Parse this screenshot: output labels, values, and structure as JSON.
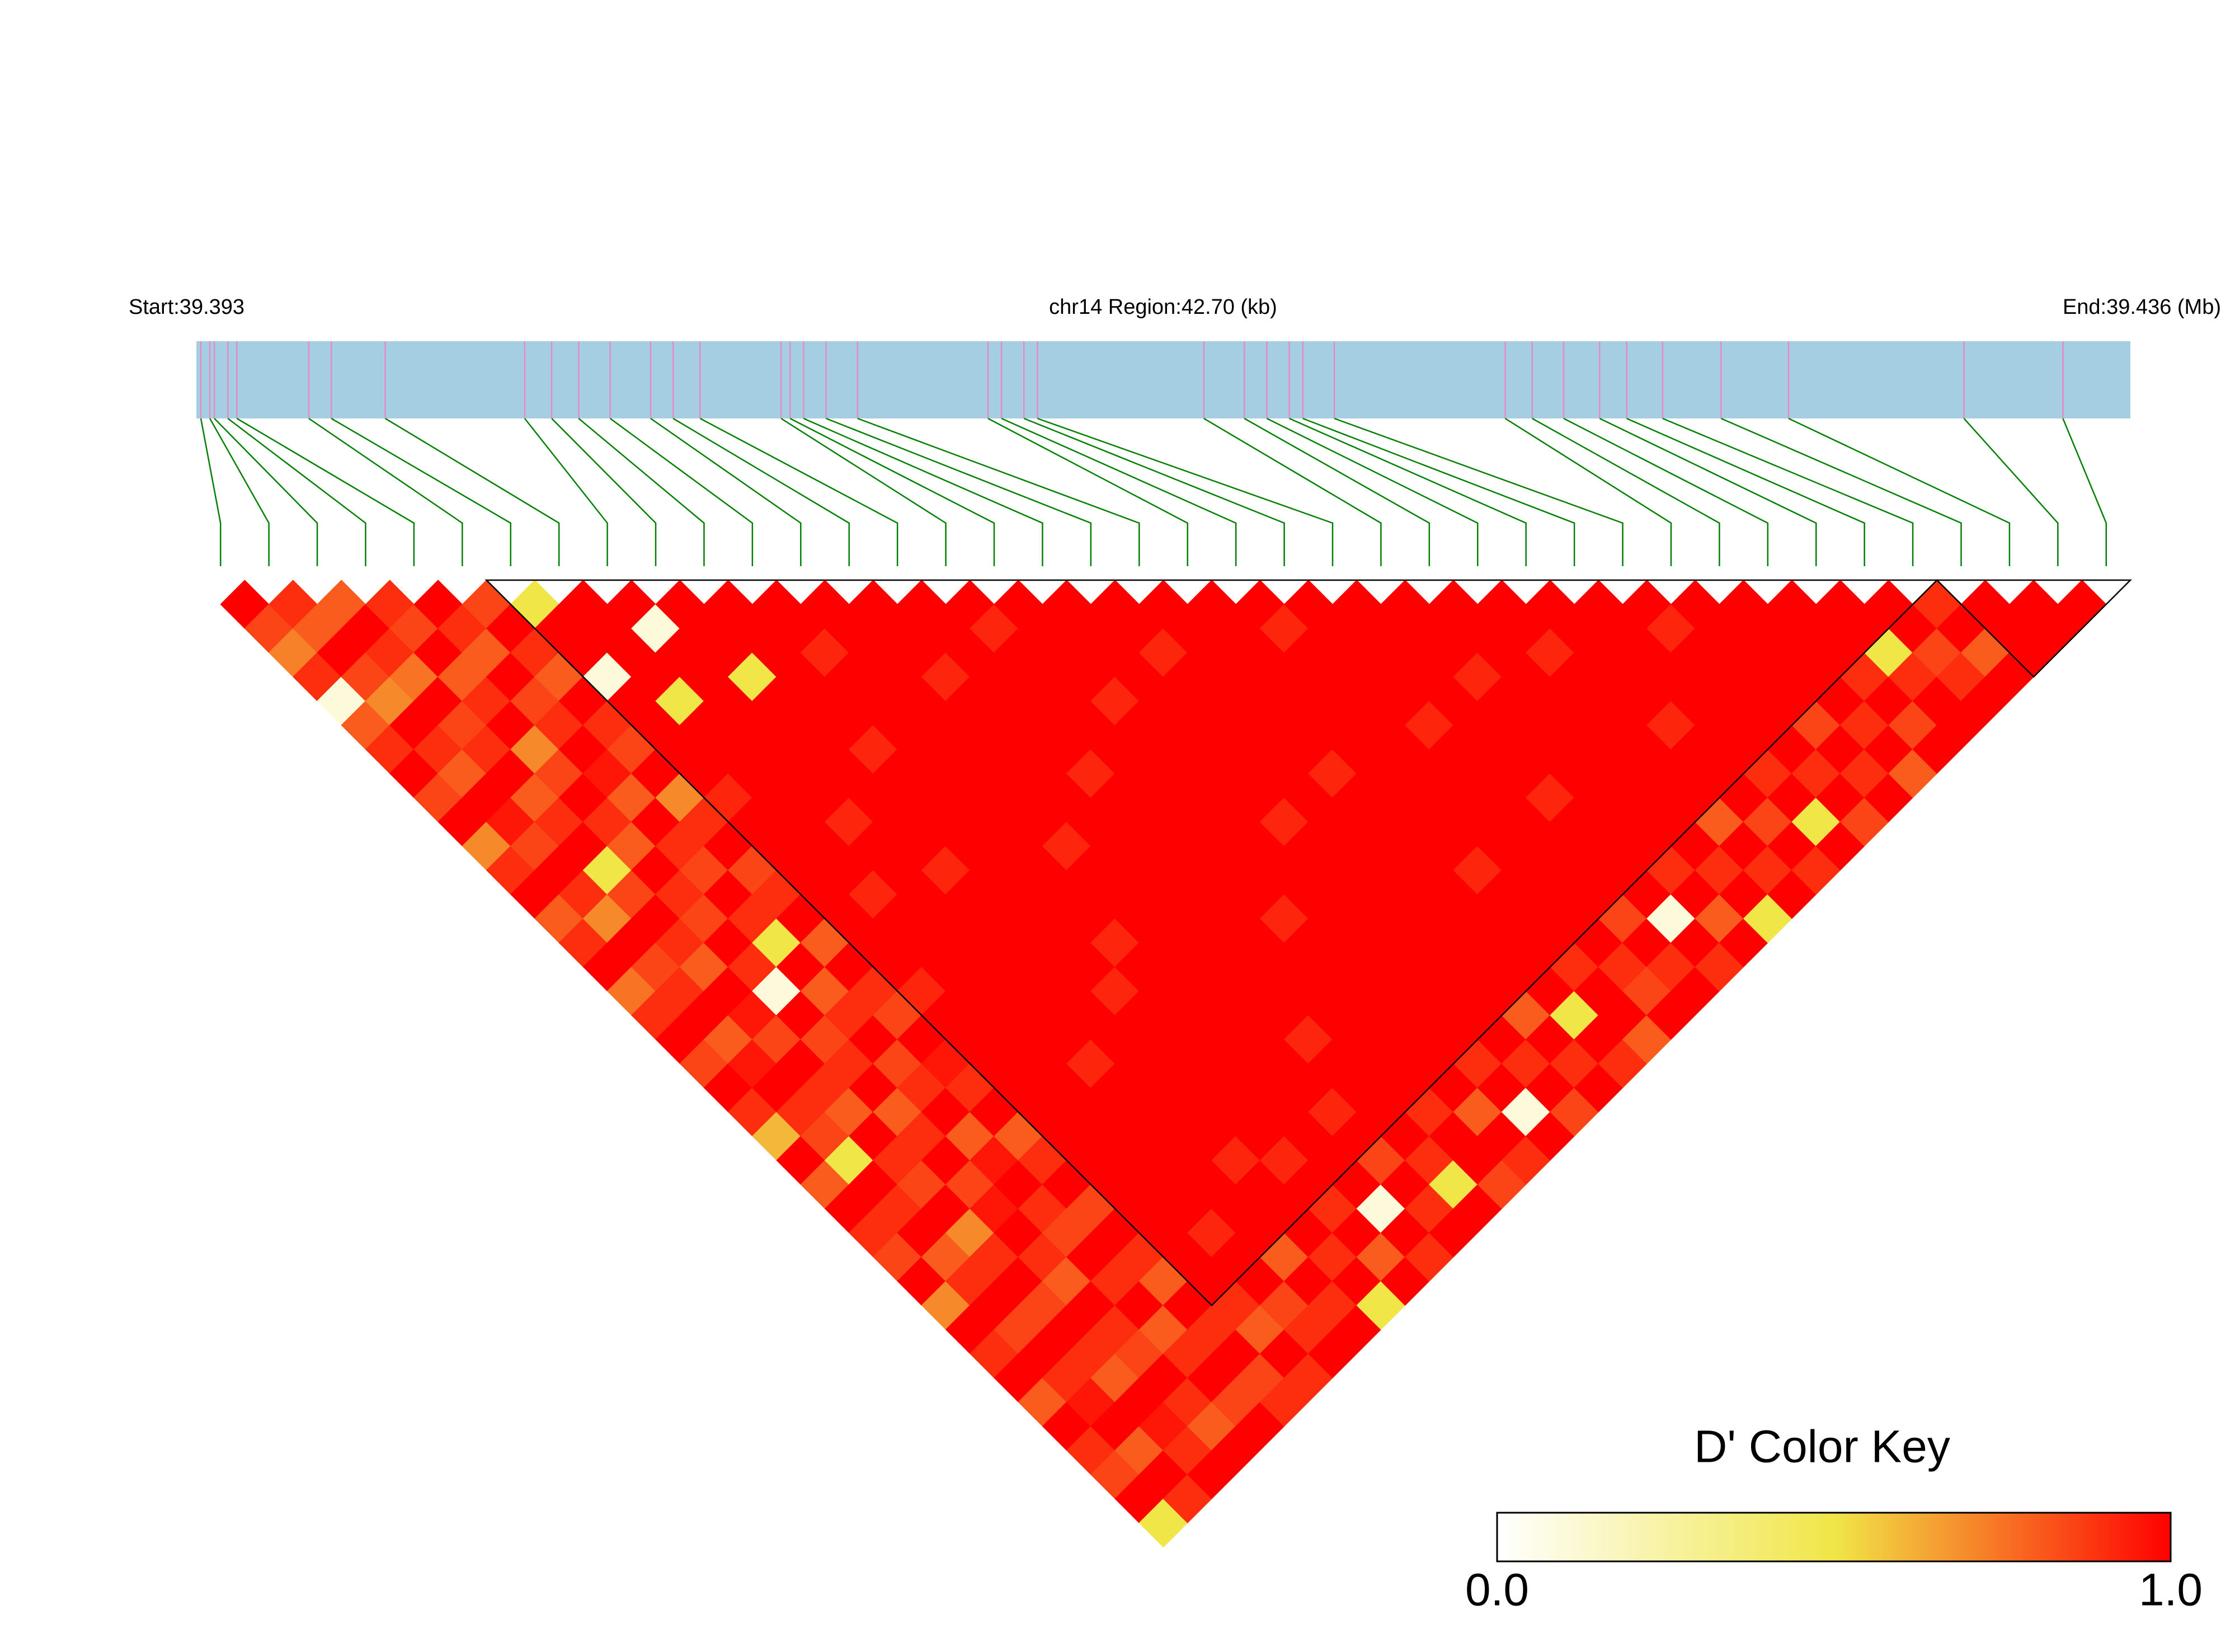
{
  "chart_data": {
    "type": "ld_heatmap",
    "start": {
      "value": 39.393,
      "label": "Start:39.393"
    },
    "title": "chr14 Region:42.70 (kb)",
    "end": {
      "value": 39.436,
      "label": "End:39.436 (Mb)"
    },
    "positions": [
      39.3931,
      39.3933,
      39.3934,
      39.3937,
      39.3939,
      39.3955,
      39.396,
      39.3972,
      39.4003,
      39.4009,
      39.4015,
      39.4022,
      39.4031,
      39.4036,
      39.4042,
      39.406,
      39.4062,
      39.4065,
      39.407,
      39.4077,
      39.4106,
      39.4109,
      39.4114,
      39.4117,
      39.4154,
      39.4163,
      39.4168,
      39.4173,
      39.4176,
      39.4183,
      39.4221,
      39.4227,
      39.4234,
      39.4242,
      39.4248,
      39.4256,
      39.4269,
      39.4284,
      39.4323,
      39.4345
    ],
    "matrix": [
      [
        1,
        0.85,
        0.72,
        0.9,
        0.1,
        0.8,
        0.9,
        1,
        0.85,
        1,
        0.7,
        0.9,
        1,
        0.8,
        0.9,
        1,
        0.75,
        0.9,
        1,
        0.85,
        1,
        0.9,
        0.6,
        1,
        0.8,
        1,
        0.9,
        0.85,
        1,
        0.7,
        1,
        0.9,
        1,
        0.8,
        1,
        0.9,
        0.85,
        1,
        0.5
      ],
      [
        0.9,
        0.8,
        1,
        0.85,
        0.7,
        1,
        0.9,
        0.8,
        1,
        0.95,
        0.85,
        1,
        0.9,
        0.7,
        1,
        0.85,
        0.9,
        1,
        0.8,
        0.95,
        1,
        0.9,
        0.85,
        0.5,
        1,
        0.9,
        1,
        0.8,
        0.9,
        1,
        0.85,
        1,
        0.9,
        0.95,
        1,
        0.8,
        1,
        0.9
      ],
      [
        0.8,
        1,
        0.9,
        0.75,
        1,
        0.85,
        0.9,
        1,
        0.8,
        0.9,
        1,
        0.5,
        0.85,
        1,
        0.9,
        0.8,
        1,
        0.95,
        0.85,
        1,
        0.9,
        0.8,
        1,
        0.9,
        0.85,
        1,
        0.7,
        0.9,
        1,
        0.85,
        1,
        0.9,
        0.8,
        1,
        0.95,
        0.9,
        1
      ],
      [
        0.9,
        0.85,
        1,
        0.8,
        0.9,
        1,
        0.7,
        0.85,
        1,
        0.9,
        0.8,
        1,
        0.9,
        0.85,
        1,
        0.9,
        0.1,
        1,
        0.85,
        0.9,
        1,
        0.8,
        0.9,
        1,
        0.85,
        0.95,
        1,
        0.9,
        0.8,
        1,
        0.9,
        0.85,
        1,
        0.9,
        0.8,
        1
      ],
      [
        1,
        0.9,
        0.8,
        1,
        0.85,
        0.9,
        1,
        0.95,
        0.8,
        1,
        0.9,
        0.85,
        1,
        0.9,
        0.5,
        1,
        0.8,
        0.9,
        1,
        0.85,
        0.9,
        1,
        0.8,
        0.95,
        1,
        0.9,
        0.85,
        1,
        0.9,
        1,
        0.8,
        0.9,
        1,
        0.85,
        1
      ],
      [
        0.85,
        1,
        0.9,
        0.8,
        1,
        0.9,
        0.85,
        1,
        0.7,
        0.9,
        1,
        0.85,
        0.9,
        1,
        0.8,
        1,
        0.9,
        0.85,
        1,
        0.95,
        0.9,
        1,
        0.8,
        0.9,
        1,
        0.85,
        1,
        0.9,
        0.8,
        1,
        0.9,
        1,
        0.85,
        0.9
      ],
      [
        0.5,
        1,
        1,
        0.1,
        1,
        1,
        1,
        1,
        0.92,
        1,
        1,
        1,
        1,
        1,
        1,
        1,
        0.92,
        1,
        1,
        1,
        1,
        1,
        1,
        1,
        1,
        1,
        1,
        1,
        1,
        0.9,
        0.8,
        1,
        0.9
      ],
      [
        1,
        1,
        1,
        1,
        0.5,
        1,
        1,
        1,
        1,
        1,
        1,
        1,
        0.92,
        1,
        1,
        1,
        1,
        1,
        1,
        1,
        1,
        1,
        1,
        1,
        1,
        1,
        0.92,
        1,
        1,
        0.85,
        0.9,
        1
      ],
      [
        1,
        0.1,
        1,
        1,
        1,
        1,
        1,
        1,
        1,
        0.92,
        1,
        1,
        1,
        1,
        1,
        1,
        1,
        1,
        1,
        0.92,
        1,
        1,
        1,
        1,
        1,
        1,
        1,
        0.8,
        1,
        0.9,
        1
      ],
      [
        1,
        1,
        1,
        0.5,
        1,
        1,
        1,
        1,
        1,
        1,
        1,
        0.92,
        1,
        1,
        1,
        1,
        1,
        1,
        1,
        1,
        1,
        1,
        1,
        0.92,
        1,
        1,
        1,
        0.9,
        1,
        0.5
      ],
      [
        1,
        1,
        1,
        1,
        1,
        1,
        0.92,
        1,
        1,
        1,
        1,
        1,
        1,
        1,
        1,
        1,
        0.92,
        1,
        1,
        1,
        1,
        1,
        1,
        0.92,
        1,
        0.9,
        1,
        0.8,
        1
      ],
      [
        1,
        1,
        0.92,
        1,
        1,
        1,
        1,
        1,
        1,
        1,
        1,
        1,
        1,
        1,
        0.92,
        1,
        1,
        1,
        1,
        1,
        1,
        1,
        1,
        1,
        1,
        0.1,
        1,
        0.9
      ],
      [
        1,
        1,
        1,
        1,
        1,
        1,
        1,
        1,
        1,
        1,
        0.92,
        1,
        1,
        1,
        1,
        1,
        1,
        1,
        1,
        1,
        1,
        0.92,
        1,
        0.85,
        1,
        0.9,
        1
      ],
      [
        1,
        1,
        1,
        0.92,
        1,
        1,
        1,
        1,
        1,
        1,
        1,
        1,
        1,
        1,
        1,
        1,
        1,
        1,
        0.92,
        1,
        1,
        1,
        1,
        0.9,
        0.5,
        1
      ],
      [
        1,
        1,
        1,
        1,
        1,
        1,
        1,
        0.92,
        1,
        1,
        1,
        1,
        1,
        1,
        1,
        1,
        1,
        1,
        1,
        1,
        1,
        0.9,
        1,
        1,
        0.85
      ],
      [
        1,
        0.92,
        1,
        1,
        1,
        1,
        1,
        1,
        1,
        1,
        1,
        1,
        1,
        0.92,
        1,
        1,
        1,
        1,
        1,
        1,
        1,
        0.8,
        1,
        0.9
      ],
      [
        1,
        1,
        1,
        1,
        0.92,
        1,
        1,
        1,
        1,
        1,
        1,
        1,
        1,
        1,
        1,
        1,
        1,
        1,
        1,
        0.9,
        1,
        0.1,
        1
      ],
      [
        1,
        1,
        1,
        1,
        1,
        1,
        1,
        1,
        1,
        0.92,
        1,
        1,
        1,
        1,
        1,
        1,
        1,
        1,
        1,
        0.9,
        1,
        0.85
      ],
      [
        1,
        1,
        0.92,
        1,
        1,
        1,
        1,
        1,
        1,
        1,
        1,
        1,
        1,
        1,
        1,
        1,
        1,
        0.8,
        1,
        0.9,
        1
      ],
      [
        1,
        1,
        1,
        1,
        1,
        1,
        1,
        0.92,
        1,
        1,
        1,
        1,
        1,
        1,
        1,
        1,
        1,
        0.5,
        1,
        0.9
      ],
      [
        1,
        1,
        1,
        1,
        1,
        1,
        1,
        1,
        1,
        1,
        1,
        0.92,
        1,
        1,
        1,
        0.9,
        1,
        1,
        0.8
      ],
      [
        1,
        0.92,
        1,
        1,
        1,
        1,
        1,
        1,
        1,
        1,
        1,
        1,
        1,
        1,
        1,
        0.9,
        0.85,
        1
      ],
      [
        1,
        1,
        1,
        1,
        1,
        0.92,
        1,
        1,
        1,
        1,
        1,
        1,
        1,
        0.85,
        1,
        0.9,
        1
      ],
      [
        1,
        1,
        1,
        1,
        1,
        1,
        1,
        1,
        0.92,
        1,
        1,
        1,
        1,
        0.1,
        1,
        0.9
      ],
      [
        1,
        1,
        1,
        0.92,
        1,
        1,
        1,
        1,
        1,
        1,
        1,
        0.9,
        1,
        0.8,
        1
      ],
      [
        1,
        1,
        1,
        1,
        1,
        1,
        1,
        1,
        1,
        1,
        1,
        0.9,
        1,
        0.5
      ],
      [
        1,
        1,
        0.92,
        1,
        1,
        1,
        1,
        1,
        1,
        0.8,
        1,
        0.9,
        1
      ],
      [
        1,
        1,
        1,
        1,
        1,
        0.92,
        1,
        1,
        1,
        0.85,
        1,
        0.9
      ],
      [
        1,
        1,
        1,
        1,
        1,
        1,
        1,
        0.9,
        1,
        0.5,
        1
      ],
      [
        1,
        0.92,
        1,
        1,
        1,
        1,
        1,
        0.9,
        1,
        0.85
      ],
      [
        1,
        1,
        1,
        1,
        1,
        0.85,
        1,
        0.9,
        1
      ],
      [
        1,
        1,
        1,
        1,
        1,
        0.9,
        1,
        0.8
      ],
      [
        1,
        1,
        1,
        0.9,
        1,
        0.85,
        1
      ],
      [
        1,
        1,
        0.5,
        0.9,
        1,
        1
      ],
      [
        1,
        1,
        0.85,
        0.9,
        1
      ],
      [
        0.9,
        1,
        0.8,
        1
      ],
      [
        1,
        1,
        1
      ],
      [
        1,
        1
      ],
      [
        1
      ]
    ],
    "blocks": [
      [
        6,
        35
      ],
      [
        36,
        39
      ]
    ],
    "zlim": [
      0,
      1
    ],
    "colors": [
      "#ffffff",
      "#f0e648",
      "#ff0000"
    ],
    "legend_title": "D' Color Key",
    "legend_ticks": [
      {
        "value": 0,
        "label": "0.0"
      },
      {
        "value": 1,
        "label": "1.0"
      }
    ],
    "gene_bar_color": "#a6cee3",
    "snp_line_color": "#e78ac3",
    "connector_color": "#008000",
    "block_color": "#000000"
  }
}
